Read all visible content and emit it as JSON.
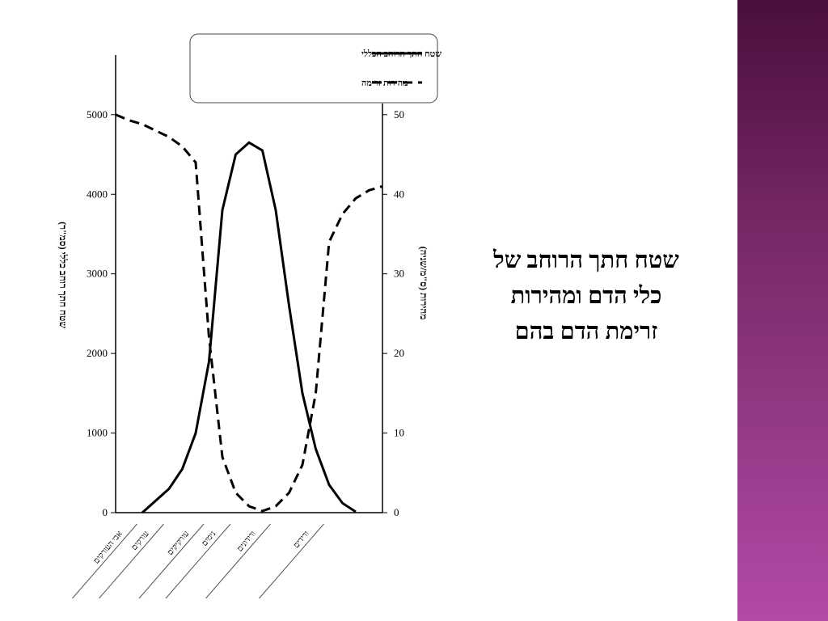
{
  "slide_title": [
    "שטח חתך הרוחב של",
    "כלי הדם ומהירות",
    "זרימת הדם בהם"
  ],
  "chart_data": {
    "type": "line",
    "categories": [
      null,
      "אבי העורקים",
      null,
      "עורקים",
      null,
      null,
      "עורקיקים",
      null,
      "נימים",
      null,
      null,
      "ורידונים",
      null,
      null,
      null,
      "ורידים",
      null,
      null,
      null,
      null,
      null
    ],
    "series": [
      {
        "name": "שטח חתך הרוחב הכללי",
        "color": "#000000",
        "dash": "solid",
        "values": [
          null,
          null,
          0,
          150,
          300,
          550,
          1000,
          1900,
          3800,
          4500,
          4650,
          4550,
          3800,
          2600,
          1500,
          800,
          350,
          120,
          10,
          null,
          null
        ]
      },
      {
        "name": "מהירות זרימה",
        "color": "#000000",
        "dash": "dashed",
        "axis": "y2",
        "values": [
          50,
          49.3,
          48.8,
          48,
          47.2,
          46,
          44,
          22,
          7,
          2.5,
          0.8,
          0.2,
          0.8,
          2.5,
          6,
          15,
          34,
          37.5,
          39.5,
          40.5,
          41
        ]
      }
    ],
    "y_label": "שטח חתך רוחב כללי (סמ\"ר)",
    "y2_label": "מהירות (ס\"מ/שניה)",
    "ylim": [
      0,
      5750
    ],
    "yticks": [
      0,
      1000,
      2000,
      3000,
      4000,
      5000
    ],
    "y2lim": [
      0,
      57.5
    ],
    "y2ticks": [
      0,
      10,
      20,
      30,
      40,
      50
    ],
    "legend": "top"
  }
}
